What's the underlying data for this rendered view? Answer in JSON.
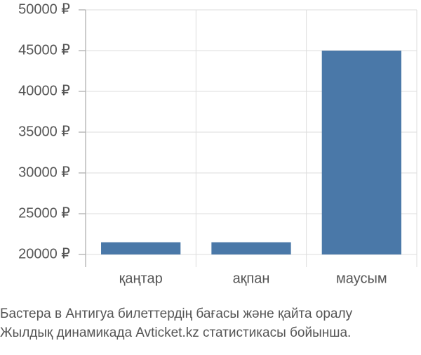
{
  "chart_data": {
    "type": "bar",
    "categories": [
      "қаңтар",
      "ақпан",
      "маусым"
    ],
    "values": [
      21500,
      21500,
      45000
    ],
    "color": "#4a78a8",
    "ylim": [
      20000,
      50000
    ],
    "yticks": [
      {
        "value": 20000,
        "label": "20000 ₽"
      },
      {
        "value": 25000,
        "label": "25000 ₽"
      },
      {
        "value": 30000,
        "label": "30000 ₽"
      },
      {
        "value": 35000,
        "label": "35000 ₽"
      },
      {
        "value": 40000,
        "label": "40000 ₽"
      },
      {
        "value": 45000,
        "label": "45000 ₽"
      },
      {
        "value": 50000,
        "label": "50000 ₽"
      }
    ],
    "grid": true,
    "caption": [
      "Бастера в Антигуа билеттердің бағасы және қайта оралу",
      "Жылдық динамикада Avticket.kz статистикасы бойынша."
    ]
  }
}
